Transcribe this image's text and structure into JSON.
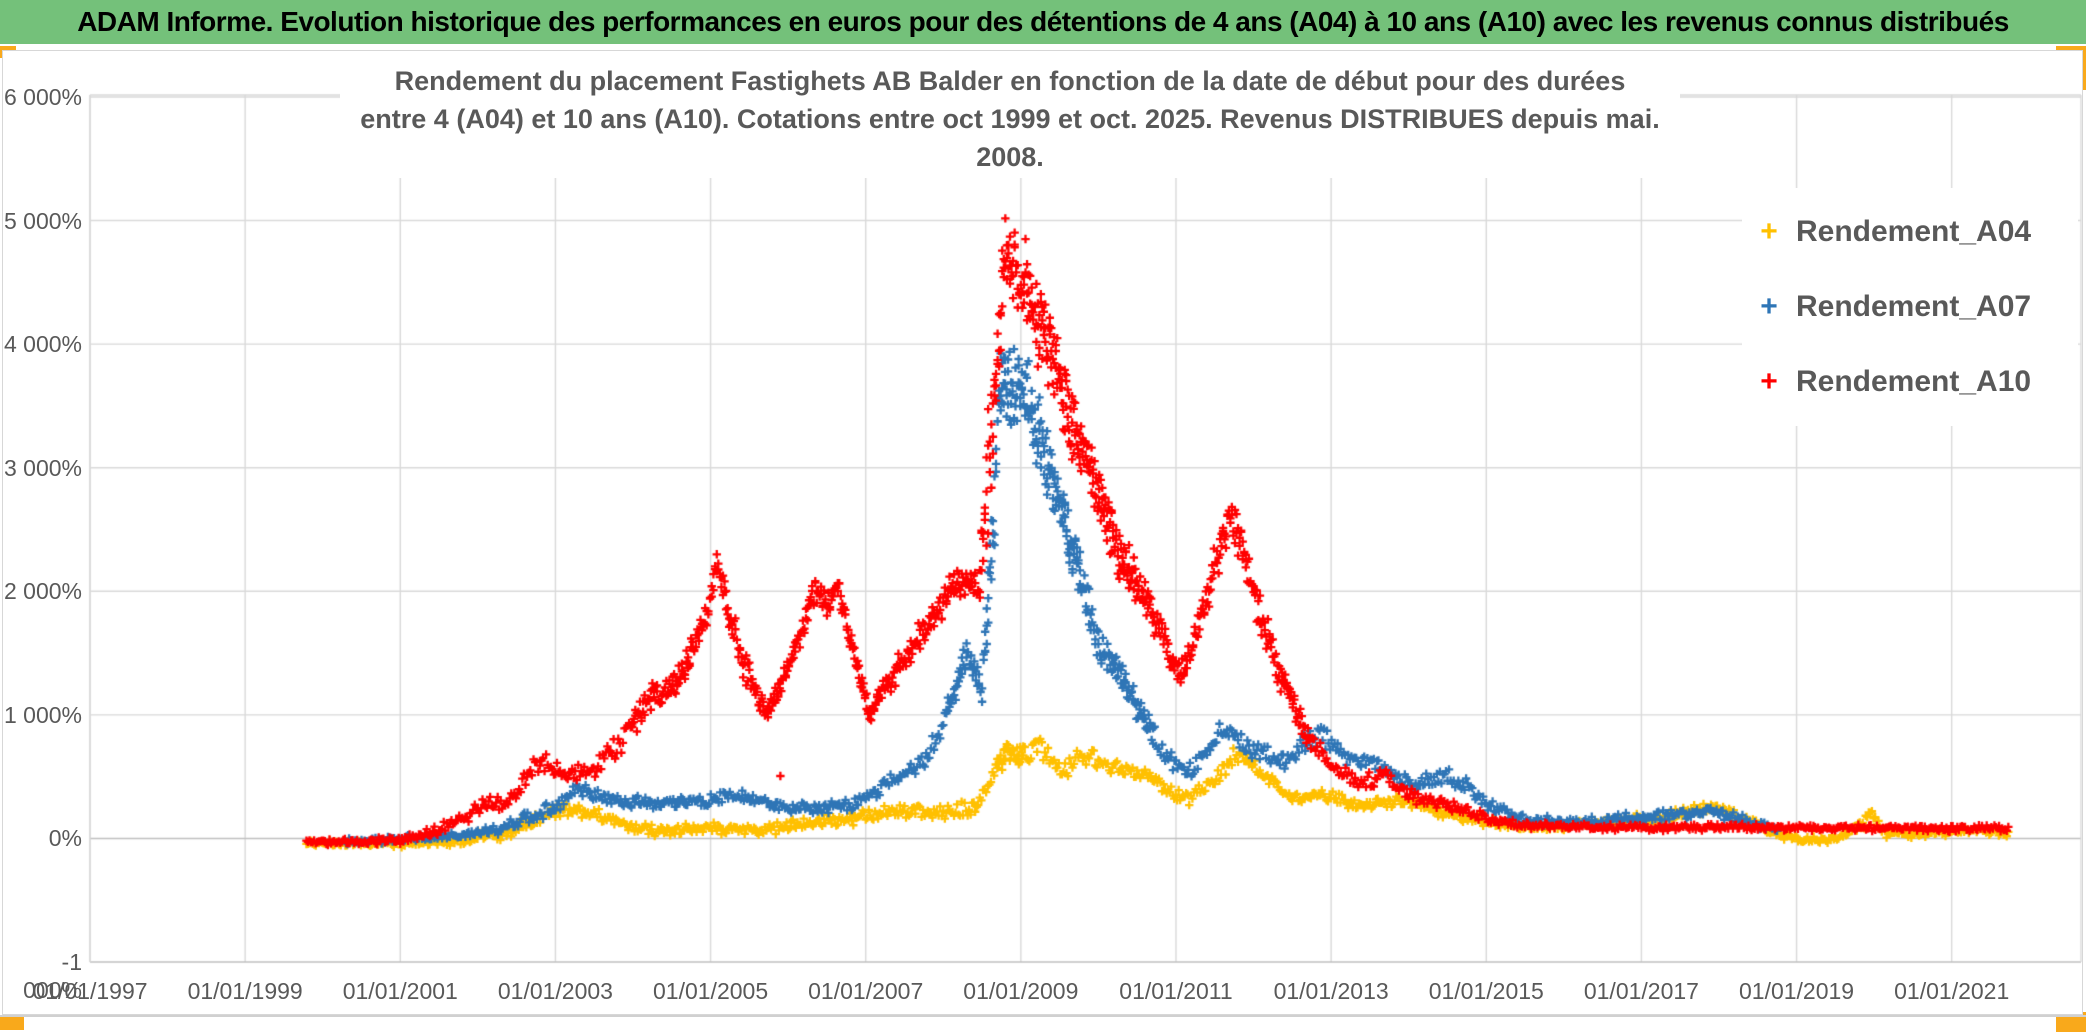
{
  "banner": {
    "title": "ADAM Informe. Evolution historique des performances en euros pour des détentions de 4 ans (A04) à 10 ans (A10) avec les revenus connus distribués",
    "background_color": "#74C17A"
  },
  "accents": {
    "corner_color": "#F9A91B"
  },
  "chart_data": {
    "type": "scatter",
    "title_line1": "Rendement du placement Fastighets AB Balder en fonction de la date de début pour des durées",
    "title_line2": "entre 4 (A04) et 10 ans (A10). Cotations entre oct 1999 et oct. 2025. Revenus DISTRIBUES depuis mai. 2008.",
    "marker": "plus",
    "grid": true,
    "gridline_color": "#d9d9d9",
    "zero_line_color": "#bfbfbf",
    "text_color": "#595959",
    "x_axis": {
      "labels": [
        "01/01/1997",
        "01/01/1999",
        "01/01/2001",
        "01/01/2003",
        "01/01/2005",
        "01/01/2007",
        "01/01/2009",
        "01/01/2011",
        "01/01/2013",
        "01/01/2015",
        "01/01/2017",
        "01/01/2019",
        "01/01/2021"
      ],
      "start_year": 1997,
      "interval_years": 2,
      "data_range_years": [
        1999.79,
        2021.79
      ]
    },
    "y_axis": {
      "labels": [
        "6 000%",
        "5 000%",
        "4 000%",
        "3 000%",
        "2 000%",
        "1 000%",
        "0%",
        "-1 000%"
      ],
      "max": 6000,
      "min": -1000,
      "step": 1000,
      "unit": "%"
    },
    "legend": [
      {
        "name": "Rendement_A04",
        "color": "#FFC000"
      },
      {
        "name": "Rendement_A07",
        "color": "#2E75B6"
      },
      {
        "name": "Rendement_A10",
        "color": "#FF0000"
      }
    ],
    "series": [
      {
        "name": "Rendement_A04",
        "color": "#FFC000",
        "seed": 7,
        "trend": [
          [
            1999.79,
            -45,
            25
          ],
          [
            2001.6,
            -30,
            28
          ],
          [
            2002.35,
            35,
            40
          ],
          [
            2002.9,
            190,
            50
          ],
          [
            2003.3,
            235,
            50
          ],
          [
            2003.9,
            120,
            42
          ],
          [
            2004.3,
            60,
            38
          ],
          [
            2005.0,
            85,
            40
          ],
          [
            2005.6,
            65,
            38
          ],
          [
            2006.2,
            110,
            40
          ],
          [
            2007.0,
            175,
            45
          ],
          [
            2007.6,
            235,
            50
          ],
          [
            2008.1,
            205,
            50
          ],
          [
            2008.45,
            265,
            60
          ],
          [
            2008.8,
            715,
            90
          ],
          [
            2009.05,
            650,
            80
          ],
          [
            2009.25,
            735,
            75
          ],
          [
            2009.55,
            545,
            62
          ],
          [
            2009.8,
            685,
            62
          ],
          [
            2010.1,
            600,
            60
          ],
          [
            2010.5,
            530,
            56
          ],
          [
            2010.9,
            385,
            52
          ],
          [
            2011.15,
            315,
            48
          ],
          [
            2011.5,
            480,
            55
          ],
          [
            2011.8,
            700,
            60
          ],
          [
            2012.1,
            530,
            56
          ],
          [
            2012.5,
            315,
            46
          ],
          [
            2012.9,
            370,
            46
          ],
          [
            2013.3,
            265,
            42
          ],
          [
            2013.9,
            310,
            42
          ],
          [
            2014.4,
            215,
            38
          ],
          [
            2015.0,
            125,
            32
          ],
          [
            2015.7,
            82,
            26
          ],
          [
            2016.3,
            122,
            36
          ],
          [
            2016.8,
            142,
            40
          ],
          [
            2017.3,
            172,
            45
          ],
          [
            2017.8,
            242,
            46
          ],
          [
            2018.15,
            212,
            42
          ],
          [
            2018.6,
            65,
            32
          ],
          [
            2019.1,
            -20,
            28
          ],
          [
            2019.6,
            10,
            26
          ],
          [
            2019.95,
            175,
            65
          ],
          [
            2020.12,
            45,
            32
          ],
          [
            2020.6,
            35,
            26
          ],
          [
            2021.2,
            60,
            26
          ],
          [
            2021.75,
            50,
            26
          ]
        ]
      },
      {
        "name": "Rendement_A07",
        "color": "#2E75B6",
        "seed": 13,
        "trend": [
          [
            2000.3,
            -25,
            20
          ],
          [
            2001.6,
            15,
            28
          ],
          [
            2002.2,
            65,
            35
          ],
          [
            2002.8,
            200,
            45
          ],
          [
            2003.35,
            400,
            55
          ],
          [
            2003.8,
            305,
            45
          ],
          [
            2004.3,
            280,
            42
          ],
          [
            2004.9,
            305,
            42
          ],
          [
            2005.35,
            355,
            42
          ],
          [
            2005.9,
            265,
            40
          ],
          [
            2006.4,
            235,
            40
          ],
          [
            2006.9,
            285,
            45
          ],
          [
            2007.4,
            480,
            55
          ],
          [
            2007.8,
            660,
            60
          ],
          [
            2008.08,
            1060,
            85
          ],
          [
            2008.3,
            1480,
            95
          ],
          [
            2008.5,
            1210,
            95
          ],
          [
            2008.62,
            2300,
            320
          ],
          [
            2008.74,
            3750,
            300
          ],
          [
            2008.95,
            3640,
            300
          ],
          [
            2009.12,
            3540,
            280
          ],
          [
            2009.3,
            3090,
            250
          ],
          [
            2009.55,
            2590,
            200
          ],
          [
            2009.8,
            2060,
            160
          ],
          [
            2010.0,
            1570,
            125
          ],
          [
            2010.25,
            1340,
            110
          ],
          [
            2010.55,
            1010,
            90
          ],
          [
            2010.9,
            630,
            70
          ],
          [
            2011.2,
            530,
            62
          ],
          [
            2011.6,
            870,
            70
          ],
          [
            2012.0,
            725,
            65
          ],
          [
            2012.4,
            625,
            60
          ],
          [
            2012.85,
            860,
            70
          ],
          [
            2013.2,
            645,
            58
          ],
          [
            2013.55,
            625,
            58
          ],
          [
            2014.05,
            420,
            50
          ],
          [
            2014.5,
            540,
            60
          ],
          [
            2015.0,
            285,
            45
          ],
          [
            2015.55,
            145,
            35
          ],
          [
            2016.2,
            125,
            32
          ],
          [
            2016.9,
            165,
            36
          ],
          [
            2017.5,
            195,
            40
          ],
          [
            2017.95,
            225,
            40
          ],
          [
            2018.4,
            125,
            32
          ],
          [
            2018.79,
            70,
            26
          ]
        ]
      },
      {
        "name": "Rendement_A10",
        "color": "#FF0000",
        "seed": 29,
        "trend": [
          [
            1999.79,
            -30,
            20
          ],
          [
            2001.0,
            -15,
            25
          ],
          [
            2001.6,
            90,
            45
          ],
          [
            2002.1,
            280,
            55
          ],
          [
            2002.45,
            310,
            60
          ],
          [
            2002.8,
            630,
            70
          ],
          [
            2003.1,
            520,
            60
          ],
          [
            2003.45,
            545,
            60
          ],
          [
            2003.85,
            780,
            75
          ],
          [
            2004.25,
            1150,
            90
          ],
          [
            2004.55,
            1230,
            90
          ],
          [
            2004.95,
            1780,
            100
          ],
          [
            2005.08,
            2250,
            110
          ],
          [
            2005.4,
            1450,
            100
          ],
          [
            2005.72,
            1010,
            80
          ],
          [
            2005.95,
            1260,
            90
          ],
          [
            2006.35,
            2010,
            100
          ],
          [
            2006.5,
            1860,
            90
          ],
          [
            2006.62,
            2060,
            90
          ],
          [
            2007.05,
            1010,
            85
          ],
          [
            2007.5,
            1460,
            90
          ],
          [
            2007.9,
            1810,
            100
          ],
          [
            2008.2,
            2110,
            110
          ],
          [
            2008.45,
            2010,
            110
          ],
          [
            2008.6,
            3100,
            520
          ],
          [
            2008.78,
            4680,
            330
          ],
          [
            2009.0,
            4640,
            300
          ],
          [
            2009.2,
            4230,
            280
          ],
          [
            2009.45,
            3800,
            260
          ],
          [
            2009.7,
            3300,
            240
          ],
          [
            2009.95,
            2890,
            220
          ],
          [
            2010.25,
            2320,
            170
          ],
          [
            2010.6,
            1960,
            140
          ],
          [
            2011.02,
            1330,
            110
          ],
          [
            2011.2,
            1470,
            120
          ],
          [
            2011.55,
            2340,
            150
          ],
          [
            2011.72,
            2640,
            140
          ],
          [
            2012.0,
            2000,
            140
          ],
          [
            2012.35,
            1310,
            110
          ],
          [
            2012.7,
            810,
            85
          ],
          [
            2013.0,
            580,
            65
          ],
          [
            2013.35,
            430,
            55
          ],
          [
            2013.65,
            520,
            55
          ],
          [
            2014.1,
            330,
            48
          ],
          [
            2014.6,
            255,
            42
          ],
          [
            2015.1,
            150,
            35
          ],
          [
            2015.5,
            105,
            28
          ],
          [
            2016.4,
            88,
            22
          ],
          [
            2018.5,
            88,
            22
          ],
          [
            2021.75,
            80,
            22
          ]
        ]
      }
    ],
    "outliers": [
      {
        "series": "Rendement_A10",
        "x": 2005.9,
        "y": 505
      }
    ]
  }
}
